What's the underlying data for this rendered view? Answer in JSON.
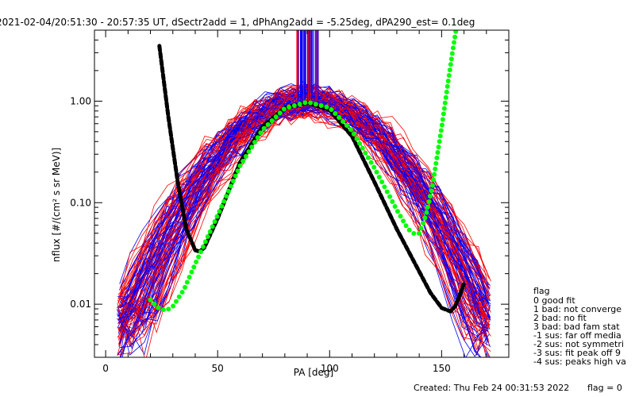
{
  "chart_data": {
    "type": "line",
    "title": "2021-02-04/20:51:30 - 20:57:35 UT, dSectr2add = 1, dPhAng2add = -5.25deg, dPA290_est=   0.1deg",
    "xlabel": "PA [deg]",
    "ylabel": "nflux [#/(cm² s sr MeV)]",
    "x_scale": "linear",
    "y_scale": "log",
    "xlim": [
      -5,
      180
    ],
    "ylim": [
      0.003,
      5
    ],
    "x_ticks": [
      0,
      50,
      100,
      150
    ],
    "x_tick_labels": [
      "0",
      "50",
      "100",
      "150"
    ],
    "y_ticks": [
      0.01,
      0.1,
      1.0
    ],
    "y_tick_labels": [
      "0.01",
      "0.10",
      "1.00"
    ],
    "grid": false,
    "legend_placement": "right",
    "colors": {
      "series_red": "#ff0000",
      "series_blue": "#0000ff",
      "fit_black": "#000000",
      "fit_green": "#00ff00"
    },
    "series": [
      {
        "color": "#000000",
        "style": "thick-dashed",
        "x": [
          24,
          28,
          32,
          36,
          40,
          42,
          44,
          50,
          60,
          70,
          80,
          90,
          100,
          110,
          120,
          130,
          140,
          145,
          150,
          154,
          156,
          158,
          160
        ],
        "y": [
          3.5,
          0.7,
          0.17,
          0.055,
          0.034,
          0.033,
          0.036,
          0.07,
          0.25,
          0.56,
          0.86,
          0.97,
          0.82,
          0.45,
          0.16,
          0.055,
          0.021,
          0.013,
          0.0092,
          0.0085,
          0.0095,
          0.012,
          0.016
        ]
      },
      {
        "color": "#00ff00",
        "style": "thick-dotted",
        "x": [
          20,
          24,
          27,
          30,
          35,
          40,
          50,
          60,
          70,
          80,
          90,
          100,
          110,
          120,
          130,
          135,
          138,
          140,
          143,
          146,
          150,
          153,
          155,
          157
        ],
        "y": [
          0.011,
          0.009,
          0.0087,
          0.0095,
          0.014,
          0.025,
          0.075,
          0.23,
          0.52,
          0.85,
          0.98,
          0.86,
          0.51,
          0.22,
          0.085,
          0.055,
          0.049,
          0.05,
          0.075,
          0.15,
          0.55,
          1.6,
          3.2,
          6
        ]
      }
    ]
  },
  "legend": {
    "title": "flag",
    "items": [
      "0 good fit",
      "1 bad: not converge",
      "2 bad: no fit",
      "3 bad: bad fam stat",
      "-1 sus: far off media",
      "-2 sus: not symmetri",
      "-3 sus: fit peak off 9",
      "-4 sus: peaks high va"
    ]
  },
  "footer": {
    "created": "Created: Thu Feb 24 00:31:53 2022",
    "flag": "flag = 0"
  }
}
